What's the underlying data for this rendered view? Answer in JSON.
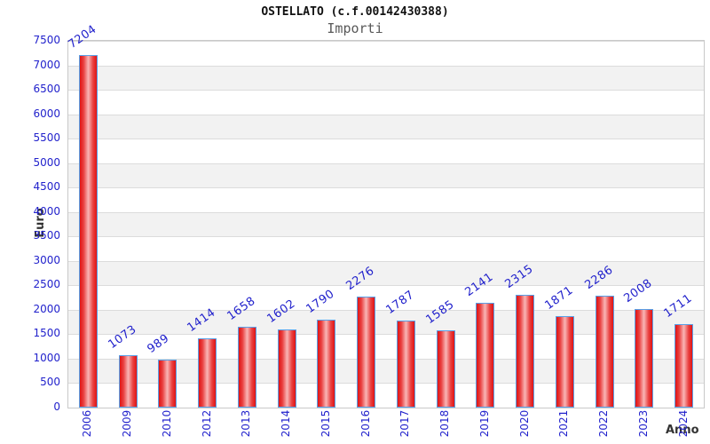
{
  "chart_data": {
    "type": "bar",
    "title": "OSTELLATO (c.f.00142430388)",
    "subtitle": "Importi",
    "xlabel": "Anno",
    "ylabel": "Euro",
    "categories": [
      "2006",
      "2009",
      "2010",
      "2012",
      "2013",
      "2014",
      "2015",
      "2016",
      "2017",
      "2018",
      "2019",
      "2020",
      "2021",
      "2022",
      "2023",
      "2024"
    ],
    "values": [
      7204,
      1073,
      989,
      1414,
      1658,
      1602,
      1790,
      2276,
      1787,
      1585,
      2141,
      2315,
      1871,
      2286,
      2008,
      1711
    ],
    "ylim": [
      0,
      7500
    ],
    "ytick_step": 500,
    "legend": "none",
    "grid": "horizontal-bands",
    "colors": {
      "bar_edge": "#e01414",
      "bar_mid": "#f9b6b6",
      "bar_border": "#58a0e8",
      "label_blue": "#2222cc",
      "band_gray": "#f2f2f2",
      "band_white": "#ffffff",
      "grid_line": "#dcdcdc",
      "plot_border": "#c9c9c9",
      "axis_title": "#333333",
      "title": "#111111",
      "subtitle": "#595959"
    }
  }
}
